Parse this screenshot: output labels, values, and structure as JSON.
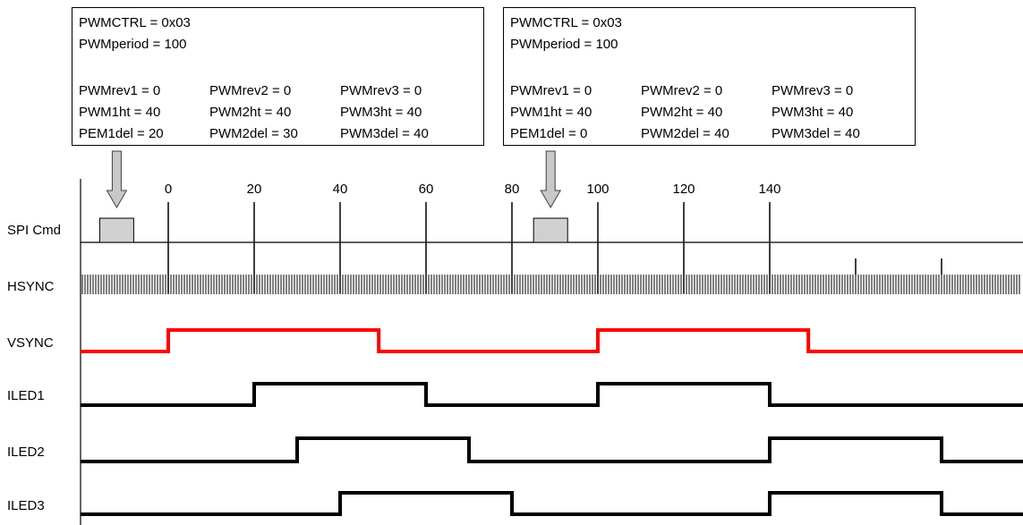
{
  "config_boxes": [
    {
      "header": [
        "PWMCTRL = 0x03",
        "PWMperiod = 100"
      ],
      "rows": [
        [
          "PWMrev1 = 0",
          "PWMrev2 = 0",
          "PWMrev3 = 0"
        ],
        [
          "PWM1ht = 40",
          "PWM2ht = 40",
          "PWM3ht = 40"
        ],
        [
          "PEM1del = 20",
          "PWM2del = 30",
          "PWM3del = 40"
        ]
      ]
    },
    {
      "header": [
        "PWMCTRL = 0x03",
        "PWMperiod = 100"
      ],
      "rows": [
        [
          "PWMrev1 = 0",
          "PWMrev2 = 0",
          "PWMrev3 = 0"
        ],
        [
          "PWM1ht = 40",
          "PWM2ht = 40",
          "PWM3ht = 40"
        ],
        [
          "PEM1del = 0",
          "PWM2del = 40",
          "PWM3del = 40"
        ]
      ]
    }
  ],
  "time_ticks": [
    0,
    20,
    40,
    60,
    80,
    100,
    120,
    140
  ],
  "time_range": [
    -20,
    200
  ],
  "spi_commands": [
    -12,
    89
  ],
  "signals": [
    {
      "name": "SPI Cmd",
      "kind": "spi"
    },
    {
      "name": "HSYNC",
      "kind": "clock"
    },
    {
      "name": "VSYNC",
      "kind": "digital",
      "color": "#ff0000",
      "high": [
        [
          0,
          49
        ],
        [
          100,
          149
        ]
      ]
    },
    {
      "name": "ILED1",
      "kind": "digital",
      "color": "#000000",
      "high": [
        [
          20,
          60
        ],
        [
          100,
          140
        ]
      ]
    },
    {
      "name": "ILED2",
      "kind": "digital",
      "color": "#000000",
      "high": [
        [
          30,
          70
        ],
        [
          140,
          180
        ]
      ]
    },
    {
      "name": "ILED3",
      "kind": "digital",
      "color": "#000000",
      "high": [
        [
          40,
          80
        ],
        [
          140,
          180
        ]
      ]
    }
  ],
  "colors": {
    "vsync": "#ff0000",
    "line": "#000000",
    "spi_box": "#d0d0d0",
    "arrow": "#c8c8c8"
  }
}
